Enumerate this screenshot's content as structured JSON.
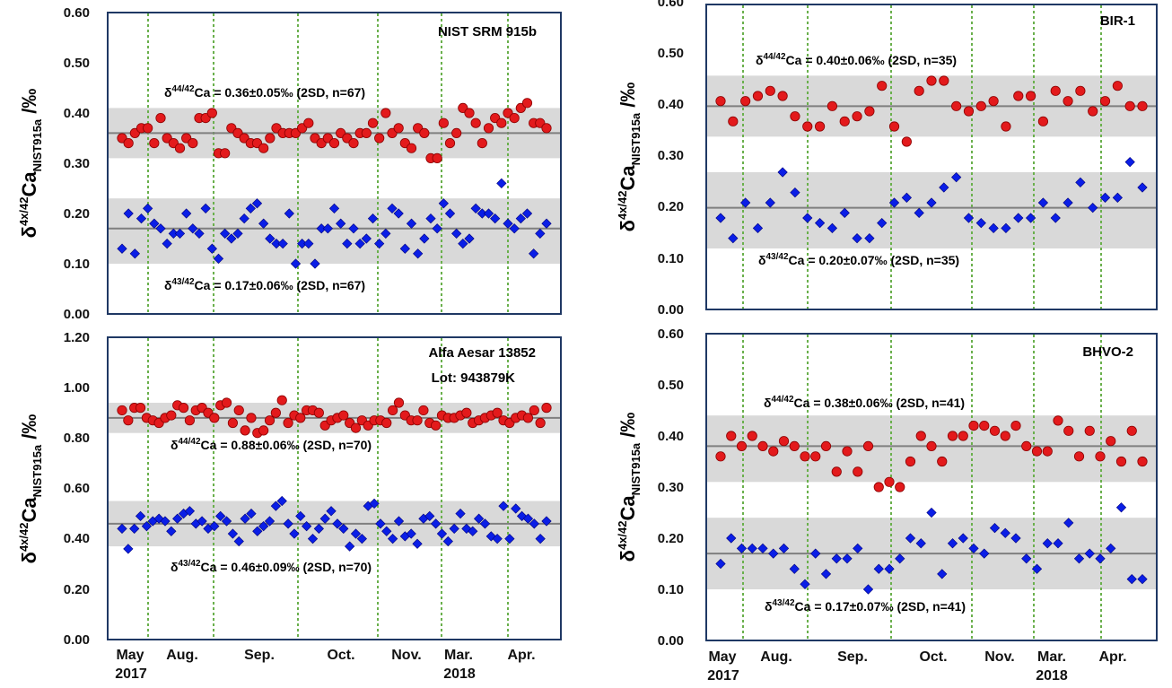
{
  "colors": {
    "delta44": "#e31a1c",
    "delta43": "#0a1ee6",
    "band": "#d9d9d9",
    "frame": "#1f3864",
    "grid": "#6ab04c",
    "mean": "#7f7f7f"
  },
  "ylabel": {
    "delta": "δ",
    "sup": "4x/42",
    "ca": "Ca",
    "sub": "NIST915a",
    "unit": " /‰"
  },
  "x_labels_left": [
    "May",
    "Aug.",
    "Sep.",
    "Oct.",
    "Nov.",
    "Mar.",
    "Apr."
  ],
  "x_labels_right": [
    "May",
    "Aug.",
    "Sep.",
    "Oct.",
    "Nov.",
    "Mar.",
    "Apr."
  ],
  "x_years_left": [
    "2017",
    "2018"
  ],
  "x_years_right": [
    "2017",
    "2018"
  ],
  "chart_data": [
    {
      "type": "scatter",
      "title": "NIST SRM 915b",
      "ytick_labels": [
        "0.60",
        "0.50",
        "0.40",
        "0.30",
        "0.20",
        "0.10",
        "0.00"
      ],
      "ylim": [
        0,
        0.6
      ],
      "ann44": {
        "pre": "δ",
        "sup": "44/42",
        "post": "Ca = 0.36±0.05‰ (2SD, n=67)"
      },
      "ann43": {
        "pre": "δ",
        "sup": "43/42",
        "post": "Ca = 0.17±0.06‰ (2SD, n=67)"
      },
      "series": [
        {
          "name": "δ44/42Ca",
          "mean": 0.36,
          "band": [
            0.31,
            0.41
          ],
          "values": [
            0.35,
            0.34,
            0.36,
            0.37,
            0.37,
            0.34,
            0.39,
            0.35,
            0.34,
            0.33,
            0.35,
            0.34,
            0.39,
            0.39,
            0.4,
            0.32,
            0.32,
            0.37,
            0.36,
            0.35,
            0.34,
            0.34,
            0.33,
            0.35,
            0.37,
            0.36,
            0.36,
            0.36,
            0.37,
            0.38,
            0.35,
            0.34,
            0.35,
            0.34,
            0.36,
            0.35,
            0.34,
            0.36,
            0.36,
            0.38,
            0.35,
            0.4,
            0.36,
            0.37,
            0.34,
            0.33,
            0.37,
            0.36,
            0.31,
            0.31,
            0.38,
            0.34,
            0.36,
            0.41,
            0.4,
            0.38,
            0.34,
            0.37,
            0.39,
            0.38,
            0.4,
            0.39,
            0.41,
            0.42,
            0.38,
            0.38,
            0.37
          ]
        },
        {
          "name": "δ43/42Ca",
          "mean": 0.17,
          "band": [
            0.1,
            0.23
          ],
          "values": [
            0.13,
            0.2,
            0.12,
            0.19,
            0.21,
            0.18,
            0.17,
            0.14,
            0.16,
            0.16,
            0.2,
            0.17,
            0.16,
            0.21,
            0.13,
            0.11,
            0.16,
            0.15,
            0.16,
            0.19,
            0.21,
            0.22,
            0.18,
            0.15,
            0.14,
            0.14,
            0.2,
            0.1,
            0.14,
            0.14,
            0.1,
            0.17,
            0.17,
            0.21,
            0.18,
            0.14,
            0.17,
            0.14,
            0.15,
            0.19,
            0.14,
            0.16,
            0.21,
            0.2,
            0.13,
            0.18,
            0.12,
            0.15,
            0.19,
            0.17,
            0.22,
            0.2,
            0.16,
            0.14,
            0.15,
            0.21,
            0.2,
            0.2,
            0.19,
            0.26,
            0.18,
            0.17,
            0.19,
            0.2,
            0.12,
            0.16,
            0.18
          ]
        }
      ]
    },
    {
      "type": "scatter",
      "title": "BIR-1",
      "ytick_labels": [
        "0.60",
        "0.50",
        "0.40",
        "0.30",
        "0.20",
        "0.10",
        "0.00"
      ],
      "ylim": [
        0,
        0.6
      ],
      "ann44": {
        "pre": "δ",
        "sup": "44/42",
        "post": "Ca = 0.40±0.06‰ (2SD, n=35)"
      },
      "ann43": {
        "pre": "δ",
        "sup": "43/42",
        "post": "Ca = 0.20±0.07‰ (2SD, n=35)"
      },
      "series": [
        {
          "name": "δ44/42Ca",
          "mean": 0.4,
          "band": [
            0.34,
            0.46
          ],
          "values": [
            0.41,
            0.37,
            0.41,
            0.42,
            0.43,
            0.42,
            0.38,
            0.36,
            0.36,
            0.4,
            0.37,
            0.38,
            0.39,
            0.44,
            0.36,
            0.33,
            0.43,
            0.45,
            0.45,
            0.4,
            0.39,
            0.4,
            0.41,
            0.36,
            0.42,
            0.42,
            0.37,
            0.43,
            0.41,
            0.43,
            0.39,
            0.41,
            0.44,
            0.4,
            0.4
          ]
        },
        {
          "name": "δ43/42Ca",
          "mean": 0.2,
          "band": [
            0.12,
            0.27
          ],
          "values": [
            0.18,
            0.14,
            0.21,
            0.16,
            0.21,
            0.27,
            0.23,
            0.18,
            0.17,
            0.16,
            0.19,
            0.14,
            0.14,
            0.17,
            0.21,
            0.22,
            0.19,
            0.21,
            0.24,
            0.26,
            0.18,
            0.17,
            0.16,
            0.16,
            0.18,
            0.18,
            0.21,
            0.18,
            0.21,
            0.25,
            0.2,
            0.22,
            0.22,
            0.29,
            0.24
          ]
        }
      ]
    },
    {
      "type": "scatter",
      "title": "Alfa Aesar 13852",
      "subtitle": "Lot: 943879K",
      "ytick_labels": [
        "1.20",
        "1.00",
        "0.80",
        "0.60",
        "0.40",
        "0.20",
        "0.00"
      ],
      "ylim": [
        0,
        1.2
      ],
      "ann44": {
        "pre": "δ",
        "sup": "44/42",
        "post": "Ca = 0.88±0.06‰ (2SD, n=70)"
      },
      "ann43": {
        "pre": "δ",
        "sup": "43/42",
        "post": "Ca = 0.46±0.09‰ (2SD, n=70)"
      },
      "series": [
        {
          "name": "δ44/42Ca",
          "mean": 0.88,
          "band": [
            0.82,
            0.94
          ],
          "values": [
            0.91,
            0.87,
            0.92,
            0.92,
            0.88,
            0.87,
            0.86,
            0.88,
            0.89,
            0.93,
            0.92,
            0.87,
            0.91,
            0.92,
            0.9,
            0.88,
            0.93,
            0.94,
            0.86,
            0.91,
            0.83,
            0.88,
            0.82,
            0.83,
            0.87,
            0.9,
            0.95,
            0.86,
            0.89,
            0.88,
            0.91,
            0.91,
            0.9,
            0.85,
            0.87,
            0.88,
            0.89,
            0.86,
            0.84,
            0.87,
            0.85,
            0.87,
            0.87,
            0.86,
            0.91,
            0.94,
            0.89,
            0.87,
            0.87,
            0.91,
            0.86,
            0.85,
            0.89,
            0.88,
            0.88,
            0.89,
            0.9,
            0.86,
            0.87,
            0.88,
            0.89,
            0.9,
            0.87,
            0.86,
            0.88,
            0.89,
            0.88,
            0.91,
            0.86,
            0.92
          ]
        },
        {
          "name": "δ43/42Ca",
          "mean": 0.46,
          "band": [
            0.37,
            0.55
          ],
          "values": [
            0.44,
            0.36,
            0.44,
            0.49,
            0.45,
            0.47,
            0.48,
            0.47,
            0.43,
            0.48,
            0.5,
            0.51,
            0.46,
            0.47,
            0.44,
            0.45,
            0.49,
            0.47,
            0.42,
            0.39,
            0.48,
            0.5,
            0.43,
            0.45,
            0.47,
            0.53,
            0.55,
            0.46,
            0.42,
            0.49,
            0.45,
            0.4,
            0.44,
            0.48,
            0.51,
            0.46,
            0.44,
            0.37,
            0.42,
            0.4,
            0.53,
            0.54,
            0.46,
            0.43,
            0.4,
            0.47,
            0.41,
            0.42,
            0.38,
            0.48,
            0.49,
            0.46,
            0.42,
            0.39,
            0.44,
            0.5,
            0.44,
            0.43,
            0.48,
            0.46,
            0.41,
            0.4,
            0.53,
            0.4,
            0.52,
            0.49,
            0.48,
            0.46,
            0.4,
            0.47
          ]
        }
      ]
    },
    {
      "type": "scatter",
      "title": "BHVO-2",
      "ytick_labels": [
        "0.60",
        "0.50",
        "0.40",
        "0.30",
        "0.20",
        "0.10",
        "0.00"
      ],
      "ylim": [
        0,
        0.6
      ],
      "ann44": {
        "pre": "δ",
        "sup": "44/42",
        "post": "Ca = 0.38±0.06‰ (2SD, n=41)"
      },
      "ann43": {
        "pre": "δ",
        "sup": "43/42",
        "post": "Ca = 0.17±0.07‰ (2SD, n=41)"
      },
      "series": [
        {
          "name": "δ44/42Ca",
          "mean": 0.38,
          "band": [
            0.31,
            0.44
          ],
          "values": [
            0.36,
            0.4,
            0.38,
            0.4,
            0.38,
            0.37,
            0.39,
            0.38,
            0.36,
            0.36,
            0.38,
            0.33,
            0.37,
            0.33,
            0.38,
            0.3,
            0.31,
            0.3,
            0.35,
            0.4,
            0.38,
            0.35,
            0.4,
            0.4,
            0.42,
            0.42,
            0.41,
            0.4,
            0.42,
            0.38,
            0.37,
            0.37,
            0.43,
            0.41,
            0.36,
            0.41,
            0.36,
            0.39,
            0.35,
            0.41,
            0.35
          ]
        },
        {
          "name": "δ43/42Ca",
          "mean": 0.17,
          "band": [
            0.1,
            0.24
          ],
          "values": [
            0.15,
            0.2,
            0.18,
            0.18,
            0.18,
            0.17,
            0.18,
            0.14,
            0.11,
            0.17,
            0.13,
            0.16,
            0.16,
            0.18,
            0.1,
            0.14,
            0.14,
            0.16,
            0.2,
            0.19,
            0.25,
            0.13,
            0.19,
            0.2,
            0.18,
            0.17,
            0.22,
            0.21,
            0.2,
            0.16,
            0.14,
            0.19,
            0.19,
            0.23,
            0.16,
            0.17,
            0.16,
            0.18,
            0.26,
            0.12,
            0.12
          ]
        }
      ]
    }
  ]
}
